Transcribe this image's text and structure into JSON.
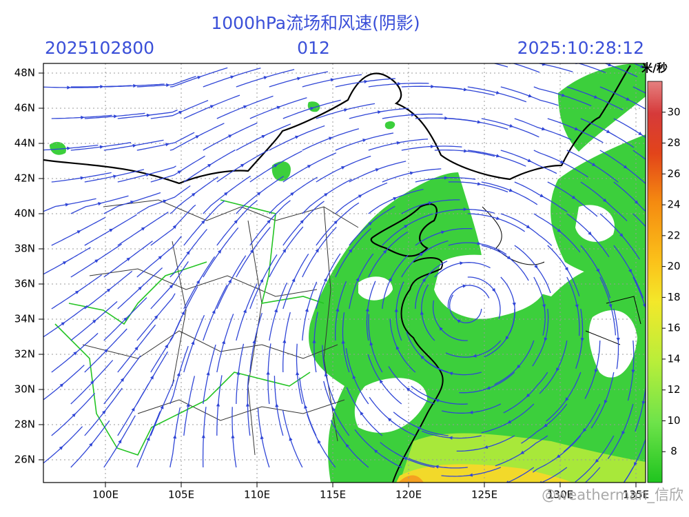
{
  "header": {
    "title": "1000hPa流场和风速(阴影)",
    "left": "2025102800",
    "center": "012",
    "right": "2025:10:28:12"
  },
  "axes": {
    "lat_labels": [
      "48N",
      "46N",
      "44N",
      "42N",
      "40N",
      "38N",
      "36N",
      "34N",
      "32N",
      "30N",
      "28N",
      "26N"
    ],
    "lon_labels": [
      "100E",
      "105E",
      "110E",
      "115E",
      "120E",
      "125E",
      "130E",
      "135E"
    ]
  },
  "colorbar": {
    "unit": "米/秒",
    "range": [
      6,
      32
    ],
    "ticks": [
      8,
      10,
      12,
      14,
      16,
      18,
      20,
      22,
      24,
      26,
      28,
      30
    ]
  },
  "watermark": "@weatherman_信欣"
}
